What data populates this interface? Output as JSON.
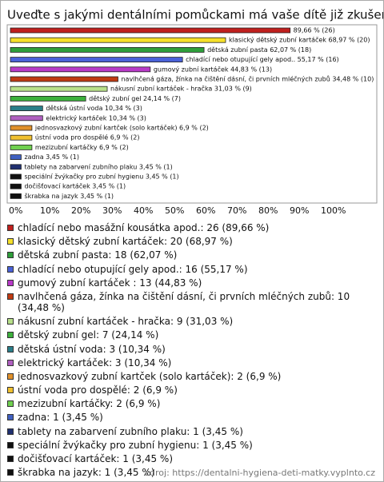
{
  "chart_data": {
    "type": "barh",
    "title": "Uveďte s jakými dentálními pomůckami má vaše dítě již zkušenosti:",
    "categories": [
      "chladící nebo masážní kousátka apod.",
      "klasický dětský zubní kartáček",
      "dětská zubní pasta",
      "chladící nebo otupující gely apod.",
      "gumový zubní kartáček",
      "navlhčená gáza, žínka na čištění dásní, či prvních mléčných zubů",
      "nákusní zubní kartáček - hračka",
      "dětský zubní gel",
      "dětská ústní voda",
      "elektrický kartáček",
      "jednosvazkový zubní kartček (solo kartáček)",
      "ústní voda pro dospělé",
      "mezizubní kartáčky",
      "zadna",
      "tablety na zabarvení zubního plaku",
      "speciální žvýkačky pro zubní hygienu",
      "dočišťovací kartáček",
      "škrabka na jazyk"
    ],
    "values": [
      89.66,
      68.97,
      62.07,
      55.17,
      44.83,
      34.48,
      31.03,
      24.14,
      10.34,
      10.34,
      6.9,
      6.9,
      6.9,
      3.45,
      3.45,
      3.45,
      3.45,
      3.45
    ],
    "value_labels": [
      "89,66 % (26)",
      "klasický dětský zubní kartáček 68,97 % (20)",
      "dětská zubní pasta 62,07 % (18)",
      "chladící nebo otupující gely apod.. 55,17 % (16)",
      "gumový zubní kartáček  44,83 % (13)",
      "navlhčená gáza, žínka na čištění dásní, či prvních mléčných zubů 34,48 % (10)",
      "nákusní zubní kartáček - hračka 31,03 % (9)",
      "dětský zubní gel 24,14 % (7)",
      "dětská ústní voda 10,34 % (3)",
      "elektrický kartáček 10,34 % (3)",
      "jednosvazkový zubní kartček (solo kartáček) 6,9 % (2)",
      "ústní voda pro dospělé 6,9 % (2)",
      "mezizubní kartáčky 6,9 % (2)",
      "zadna 3,45 % (1)",
      "tablety na zabarvení zubního plaku 3,45 % (1)",
      "speciální žvýkačky pro zubní hygienu 3,45 % (1)",
      "dočišťovací kartáček 3,45 % (1)",
      "škrabka na jazyk 3,45 % (1)"
    ],
    "legend": [
      "chladící nebo masážní kousátka apod.: 26 (89,66 %)",
      "klasický dětský zubní kartáček: 20 (68,97 %)",
      "dětská zubní pasta: 18 (62,07 %)",
      "chladící nebo otupující gely apod.: 16 (55,17 %)",
      "gumový zubní kartáček : 13 (44,83 %)",
      "navlhčená gáza, žínka na čištění dásní, či prvních mléčných zubů: 10 (34,48 %)",
      "nákusní zubní kartáček - hračka: 9 (31,03 %)",
      "dětský zubní gel: 7 (24,14 %)",
      "dětská ústní voda: 3 (10,34 %)",
      "elektrický kartáček: 3 (10,34 %)",
      "jednosvazkový zubní kartček (solo kartáček): 2 (6,9 %)",
      "ústní voda pro dospělé: 2 (6,9 %)",
      "mezizubní kartáčky: 2 (6,9 %)",
      "zadna: 1 (3,45 %)",
      "tablety na zabarvení zubního plaku: 1 (3,45 %)",
      "speciální žvýkačky pro zubní hygienu: 1 (3,45 %)",
      "dočišťovací kartáček: 1 (3,45 %)",
      "škrabka na jazyk: 1 (3,45 %)"
    ],
    "colors": [
      "#c0201e",
      "#f5e02a",
      "#2e9e3a",
      "#4a62d8",
      "#b83ac8",
      "#c03a12",
      "#b8e08a",
      "#3cb03c",
      "#2a7e8a",
      "#b060c0",
      "#e0902a",
      "#f0c030",
      "#70d050",
      "#4060c0",
      "#203070",
      "#101010",
      "#101010",
      "#101010"
    ],
    "xlim": [
      0,
      100
    ],
    "xticks": [
      {
        "value": 0,
        "label": "0%"
      },
      {
        "value": 10,
        "label": "10%"
      },
      {
        "value": 20,
        "label": "20%"
      },
      {
        "value": 30,
        "label": "30%"
      },
      {
        "value": 40,
        "label": "40%"
      },
      {
        "value": 50,
        "label": "50%"
      },
      {
        "value": 60,
        "label": "60%"
      },
      {
        "value": 70,
        "label": "70%"
      },
      {
        "value": 80,
        "label": "80%"
      },
      {
        "value": 90,
        "label": "90%"
      },
      {
        "value": 100,
        "label": "100%"
      }
    ],
    "source": "zdroj: https://dentalni-hygiena-deti-matky.vyplnto.cz"
  }
}
